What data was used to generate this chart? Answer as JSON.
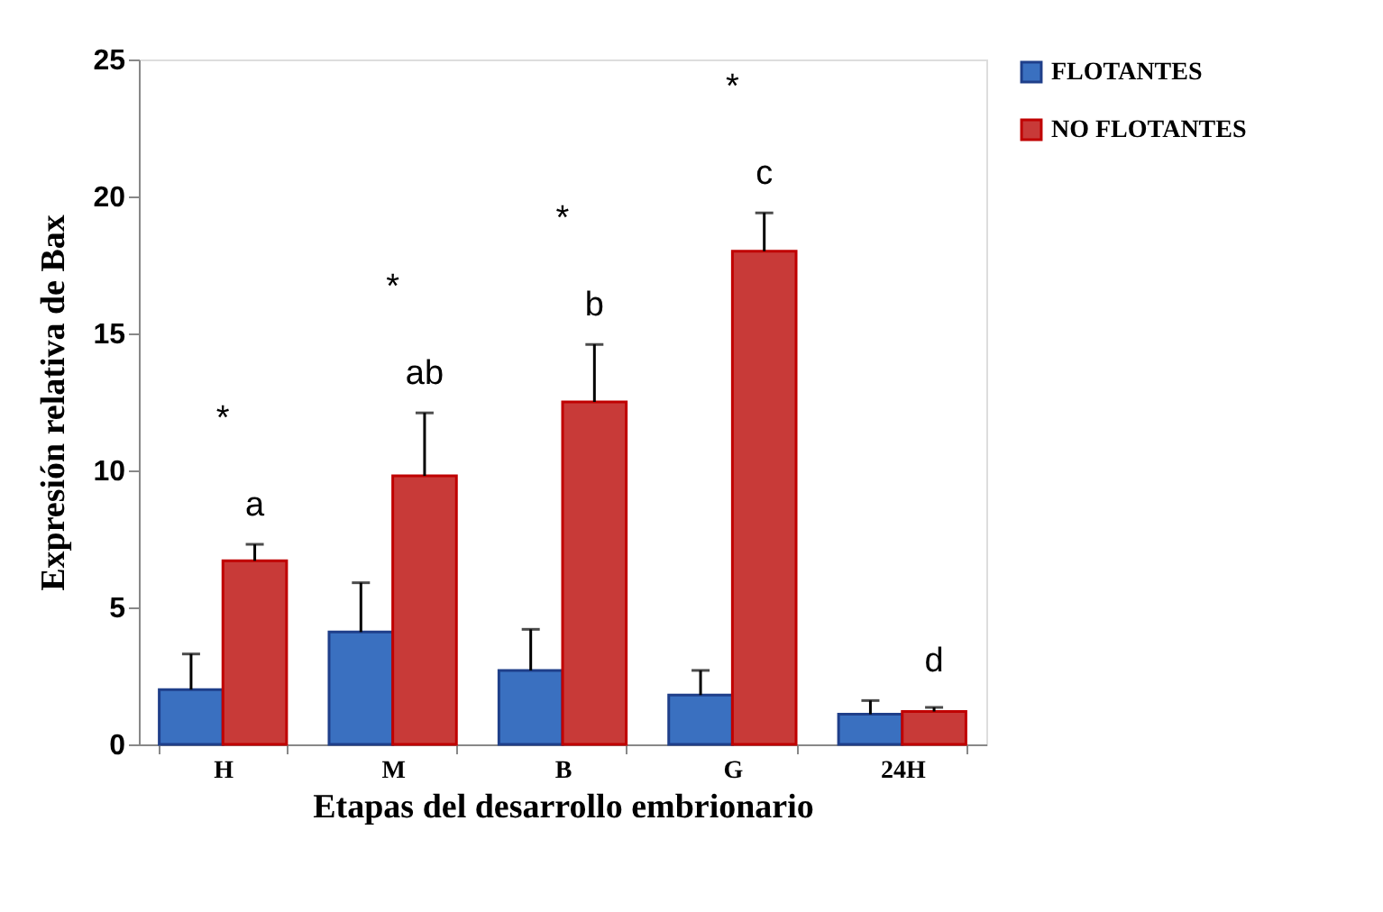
{
  "chart_data": {
    "type": "bar",
    "xlabel": "Etapas del desarrollo embrionario",
    "ylabel": "Expresión relativa de Bax",
    "categories": [
      "H",
      "M",
      "B",
      "G",
      "24H"
    ],
    "series": [
      {
        "name": "FLOTANTES",
        "color": "#3a70c0",
        "values": [
          2.0,
          4.1,
          2.7,
          1.8,
          1.1
        ],
        "errors": [
          [
            2.0,
            3.3
          ],
          [
            4.1,
            5.9
          ],
          [
            2.7,
            4.2
          ],
          [
            1.8,
            2.7
          ],
          [
            1.1,
            1.6
          ]
        ]
      },
      {
        "name": "NO FLOTANTES",
        "color": "#c83a38",
        "values": [
          6.7,
          9.8,
          12.5,
          18.0,
          1.2
        ],
        "errors": [
          [
            6.7,
            7.3
          ],
          [
            9.8,
            12.1
          ],
          [
            12.5,
            14.6
          ],
          [
            18.0,
            19.4
          ],
          [
            1.2,
            1.35
          ]
        ]
      }
    ],
    "ylim": [
      0,
      25
    ],
    "yticks": [
      0,
      5,
      10,
      15,
      20,
      25
    ],
    "grid": false,
    "legend": "top right",
    "annotations": [
      "a",
      "ab",
      "b",
      "c",
      "d",
      "*",
      "*",
      "*",
      "*"
    ]
  }
}
